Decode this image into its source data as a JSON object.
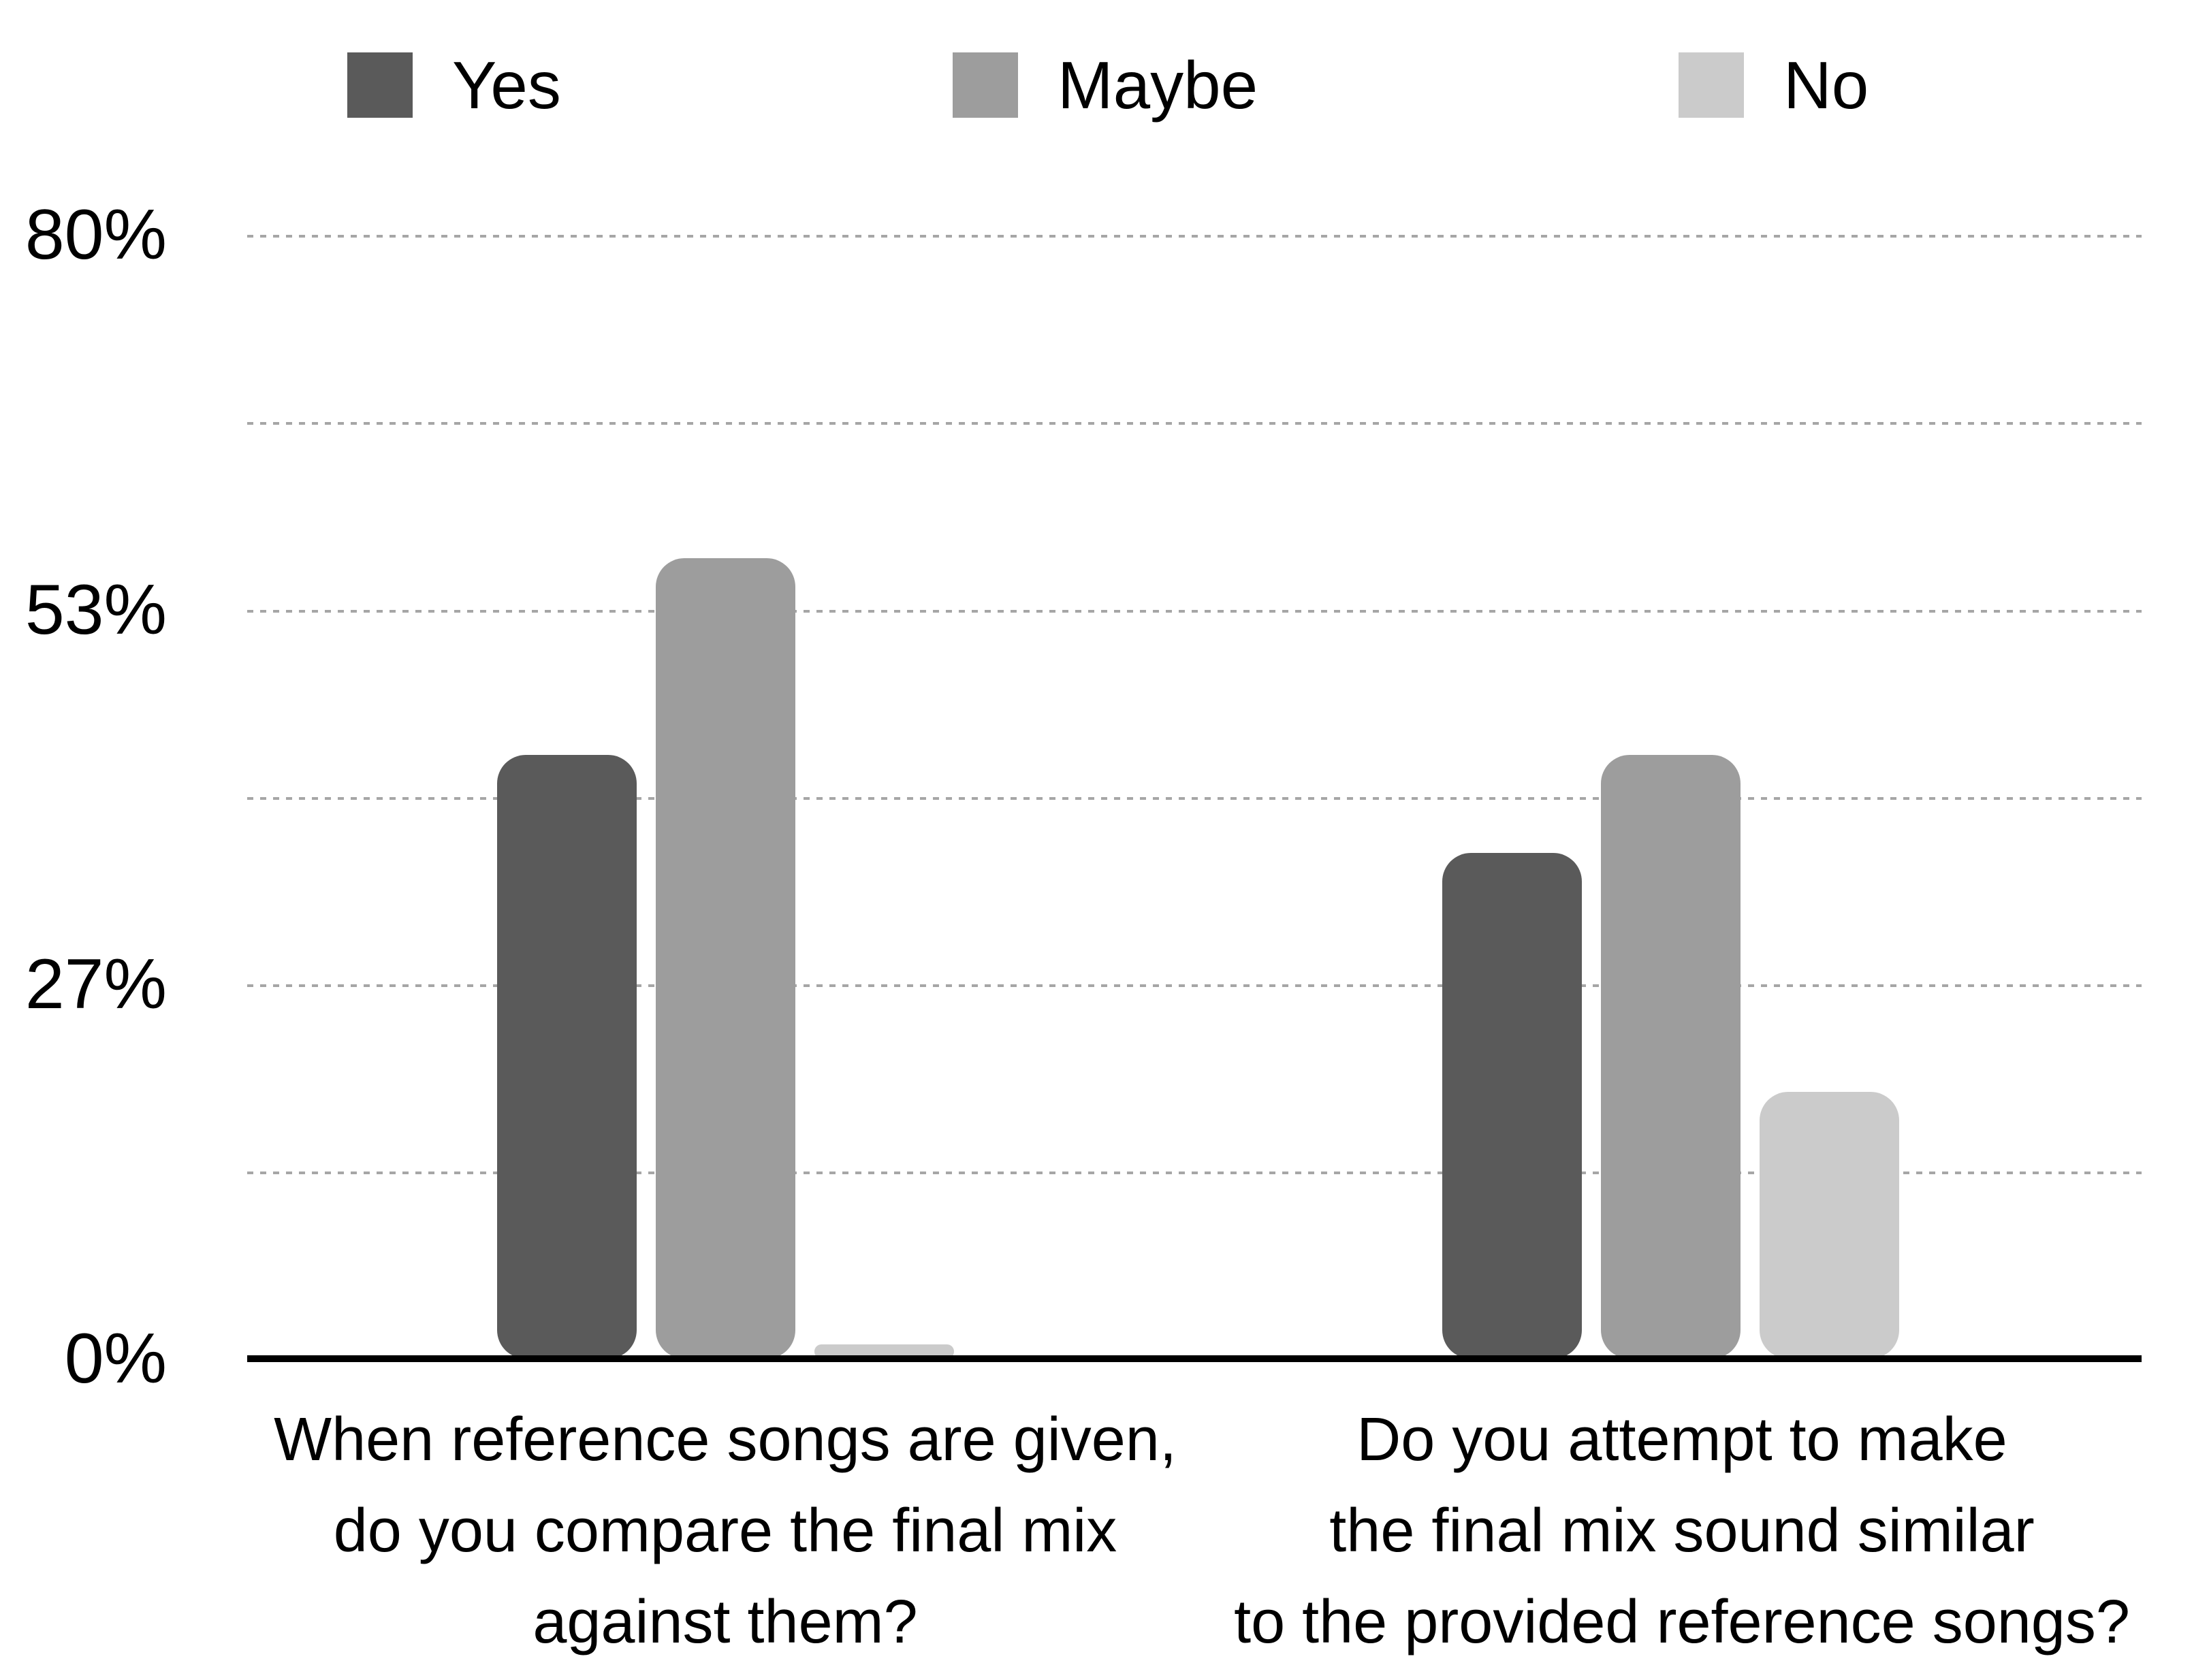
{
  "chart_data": {
    "type": "bar",
    "title": "",
    "categories": [
      "When reference songs are given, do you compare the final mix against them?",
      "Do you attempt to make the final mix sound similar to the provided reference songs?"
    ],
    "series": [
      {
        "name": "Yes",
        "color": "#5a5a5a",
        "values": [
          43,
          36
        ]
      },
      {
        "name": "Maybe",
        "color": "#9d9d9d",
        "values": [
          57,
          43
        ]
      },
      {
        "name": "No",
        "color": "#cbcbcb",
        "values": [
          1,
          19
        ]
      }
    ],
    "xlabel": "",
    "ylabel": "",
    "ylim": [
      0,
      80
    ],
    "ytick_labels": [
      "80%",
      "53%",
      "27%",
      "0%"
    ],
    "ytick_values": [
      80,
      53.33,
      26.67,
      0
    ],
    "gridline_values": [
      80,
      66.67,
      53.33,
      40,
      26.67,
      13.33
    ],
    "grid": "horizontal dotted",
    "legend_position": "top",
    "bar_style": "rounded corners, grayscale"
  },
  "legend": {
    "items": [
      {
        "label": "Yes",
        "color": "#5a5a5a"
      },
      {
        "label": "Maybe",
        "color": "#9d9d9d"
      },
      {
        "label": "No",
        "color": "#cbcbcb"
      }
    ]
  },
  "y_axis": {
    "tick_80": "80%",
    "tick_53": "53%",
    "tick_27": "27%",
    "tick_0": "0%"
  },
  "x_axis": {
    "category1_lines": [
      "When reference songs are given,",
      "do you compare the final mix",
      "against them?"
    ],
    "category2_lines": [
      "Do you attempt to make",
      "the final mix sound similar",
      "to the provided reference songs?"
    ]
  },
  "colors": {
    "background": "#ffffff",
    "axis_line": "#000000",
    "gridline": "#a6a6a6",
    "text": "#000000"
  }
}
